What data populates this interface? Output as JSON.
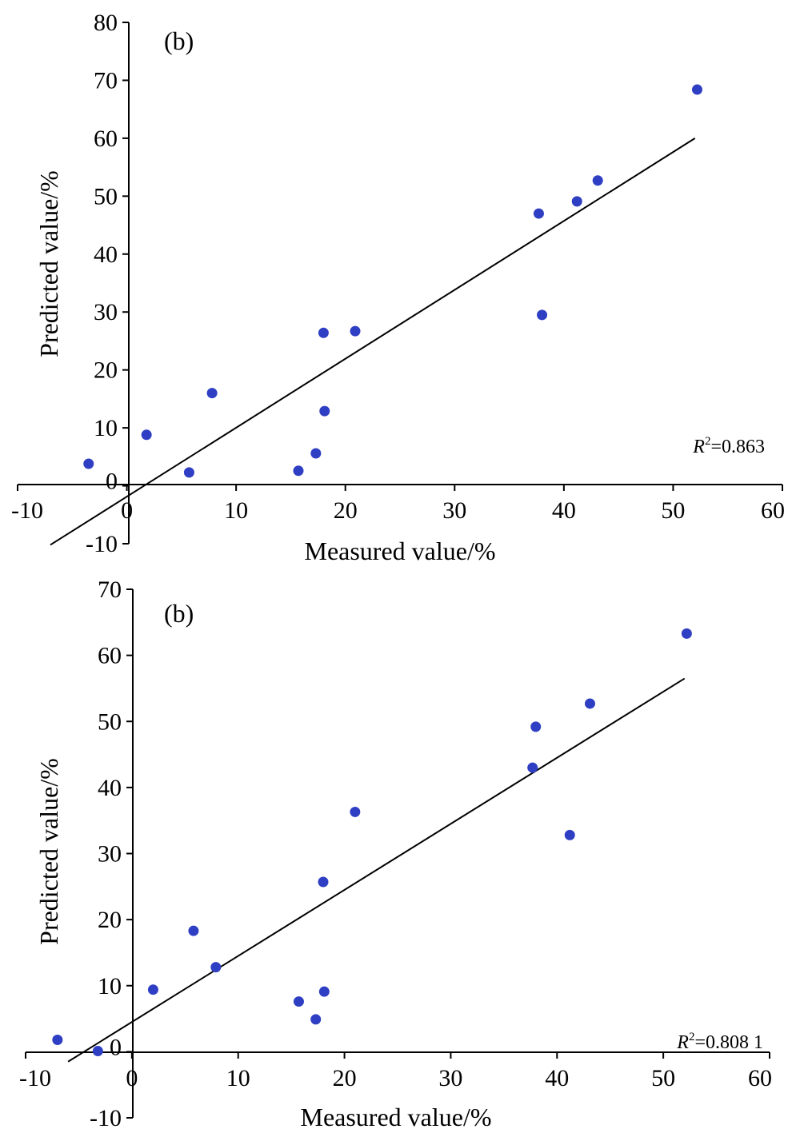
{
  "chart_data": [
    {
      "type": "scatter",
      "panel_label": "(b)",
      "xlabel": "Measured value/%",
      "ylabel": "Predicted value/%",
      "xlim": [
        -10,
        60
      ],
      "ylim": [
        -10,
        80
      ],
      "xticks": [
        -10,
        0,
        10,
        20,
        30,
        40,
        50,
        60
      ],
      "yticks": [
        -10,
        0,
        10,
        20,
        30,
        40,
        50,
        60,
        70,
        80
      ],
      "point_color": "#2f3fc4",
      "line_color": "#000000",
      "r2_symbol": "R",
      "r2_sup": "2",
      "r2_value": "=0.863",
      "points": [
        {
          "x": -3.5,
          "y": 3.8
        },
        {
          "x": 1.8,
          "y": 8.8
        },
        {
          "x": 5.7,
          "y": 2.3
        },
        {
          "x": 7.8,
          "y": 16.0
        },
        {
          "x": 15.7,
          "y": 2.6
        },
        {
          "x": 17.3,
          "y": 5.6
        },
        {
          "x": 18.0,
          "y": 26.4
        },
        {
          "x": 18.1,
          "y": 12.9
        },
        {
          "x": 20.9,
          "y": 26.7
        },
        {
          "x": 37.7,
          "y": 47.0
        },
        {
          "x": 38.0,
          "y": 29.5
        },
        {
          "x": 41.2,
          "y": 49.1
        },
        {
          "x": 43.1,
          "y": 52.7
        },
        {
          "x": 52.2,
          "y": 68.4
        }
      ],
      "fit_line": [
        {
          "x": -7.0,
          "y": -10.2
        },
        {
          "x": 52.0,
          "y": 60.0
        }
      ]
    },
    {
      "type": "scatter",
      "panel_label": "(b)",
      "xlabel": "Measured value/%",
      "ylabel": "Predicted value/%",
      "xlim": [
        -10,
        60
      ],
      "ylim": [
        -10,
        70
      ],
      "xticks": [
        -10,
        0,
        10,
        20,
        30,
        40,
        50,
        60
      ],
      "yticks": [
        -10,
        0,
        10,
        20,
        30,
        40,
        50,
        60,
        70
      ],
      "point_color": "#2f3fc4",
      "line_color": "#000000",
      "r2_symbol": "R",
      "r2_sup": "2",
      "r2_value": "=0.808 1",
      "points": [
        {
          "x": -7.0,
          "y": 1.8
        },
        {
          "x": -3.2,
          "y": 0.1
        },
        {
          "x": 2.0,
          "y": 9.4
        },
        {
          "x": 5.8,
          "y": 18.3
        },
        {
          "x": 7.9,
          "y": 12.8
        },
        {
          "x": 15.7,
          "y": 7.6
        },
        {
          "x": 17.3,
          "y": 4.9
        },
        {
          "x": 18.0,
          "y": 25.7
        },
        {
          "x": 18.1,
          "y": 9.1
        },
        {
          "x": 21.0,
          "y": 36.3
        },
        {
          "x": 37.7,
          "y": 43.0
        },
        {
          "x": 38.0,
          "y": 49.2
        },
        {
          "x": 41.2,
          "y": 32.8
        },
        {
          "x": 43.1,
          "y": 52.7
        },
        {
          "x": 52.2,
          "y": 63.3
        }
      ],
      "fit_line": [
        {
          "x": -6.0,
          "y": -1.5
        },
        {
          "x": 52.0,
          "y": 56.5
        }
      ]
    }
  ]
}
